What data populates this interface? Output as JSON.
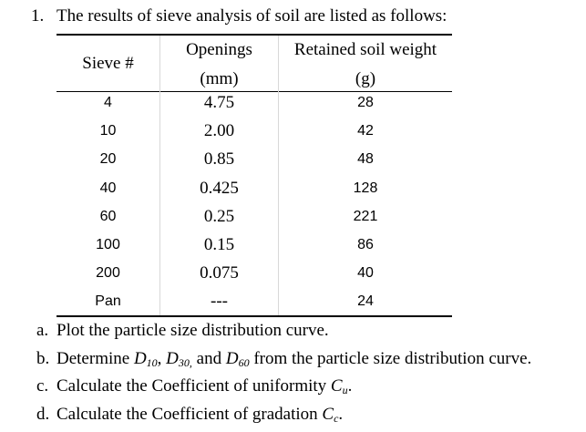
{
  "question": {
    "number": "1.",
    "text": "The results of sieve analysis of soil are listed as follows:"
  },
  "table": {
    "header": {
      "sieve": "Sieve #",
      "openings": "Openings",
      "openings_unit": "(mm)",
      "retained": "Retained soil weight",
      "retained_unit": "(g)"
    },
    "rows": [
      [
        "4",
        "4.75",
        "28"
      ],
      [
        "10",
        "2.00",
        "42"
      ],
      [
        "20",
        "0.85",
        "48"
      ],
      [
        "40",
        "0.425",
        "128"
      ],
      [
        "60",
        "0.25",
        "221"
      ],
      [
        "100",
        "0.15",
        "86"
      ],
      [
        "200",
        "0.075",
        "40"
      ],
      [
        "Pan",
        "---",
        "24"
      ]
    ]
  },
  "items": [
    {
      "label": "a.",
      "parts": [
        "Plot the particle size distribution curve."
      ]
    },
    {
      "label": "b.",
      "parts": [
        "Determine ",
        "D",
        "10",
        ", ",
        "D",
        "30,",
        " and ",
        "D",
        "60",
        " from the particle size distribution curve."
      ]
    },
    {
      "label": "c.",
      "parts": [
        "Calculate the Coefficient of uniformity ",
        "C",
        "u",
        "."
      ]
    },
    {
      "label": "d.",
      "parts": [
        "Calculate the Coefficient of gradation ",
        "C",
        "c",
        "."
      ]
    }
  ]
}
